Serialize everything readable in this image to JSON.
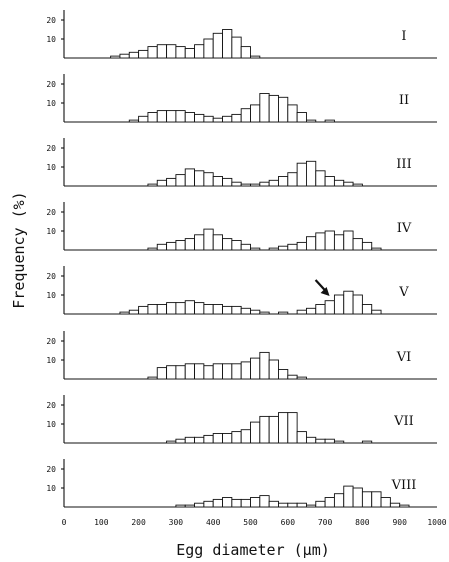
{
  "chart_data": {
    "type": "bar",
    "xlabel": "Egg diameter (μm)",
    "ylabel": "Frequency (%)",
    "xlim": [
      0,
      1000
    ],
    "ylim": [
      0,
      25
    ],
    "bin_width": 25,
    "x_ticks": [
      0,
      100,
      200,
      300,
      400,
      500,
      600,
      700,
      800,
      900,
      1000
    ],
    "x_tick_labels": [
      "0",
      "100",
      "200",
      "300",
      "400",
      "500",
      "600",
      "700",
      "800",
      "900",
      "1000"
    ],
    "y_ticks": [
      10,
      20
    ],
    "y_tick_labels": [
      "10",
      "20"
    ],
    "annotation": {
      "type": "arrow",
      "panel": "V",
      "points_to_x": 712
    },
    "panels": [
      {
        "label": "I",
        "bins": [
          [
            125,
            1
          ],
          [
            150,
            2
          ],
          [
            175,
            3
          ],
          [
            200,
            4
          ],
          [
            225,
            6
          ],
          [
            250,
            7
          ],
          [
            275,
            7
          ],
          [
            300,
            6
          ],
          [
            325,
            5
          ],
          [
            350,
            7
          ],
          [
            375,
            10
          ],
          [
            400,
            13
          ],
          [
            425,
            15
          ],
          [
            450,
            11
          ],
          [
            475,
            6
          ],
          [
            500,
            1
          ]
        ]
      },
      {
        "label": "II",
        "bins": [
          [
            175,
            1
          ],
          [
            200,
            3
          ],
          [
            225,
            5
          ],
          [
            250,
            6
          ],
          [
            275,
            6
          ],
          [
            300,
            6
          ],
          [
            325,
            5
          ],
          [
            350,
            4
          ],
          [
            375,
            3
          ],
          [
            400,
            2
          ],
          [
            425,
            3
          ],
          [
            450,
            4
          ],
          [
            475,
            7
          ],
          [
            500,
            9
          ],
          [
            525,
            15
          ],
          [
            550,
            14
          ],
          [
            575,
            13
          ],
          [
            600,
            9
          ],
          [
            625,
            5
          ],
          [
            650,
            1
          ],
          [
            700,
            1
          ]
        ]
      },
      {
        "label": "III",
        "bins": [
          [
            225,
            1
          ],
          [
            250,
            3
          ],
          [
            275,
            4
          ],
          [
            300,
            6
          ],
          [
            325,
            9
          ],
          [
            350,
            8
          ],
          [
            375,
            7
          ],
          [
            400,
            5
          ],
          [
            425,
            4
          ],
          [
            450,
            2
          ],
          [
            475,
            1
          ],
          [
            500,
            1
          ],
          [
            525,
            2
          ],
          [
            550,
            3
          ],
          [
            575,
            5
          ],
          [
            600,
            7
          ],
          [
            625,
            12
          ],
          [
            650,
            13
          ],
          [
            675,
            8
          ],
          [
            700,
            5
          ],
          [
            725,
            3
          ],
          [
            750,
            2
          ],
          [
            775,
            1
          ]
        ]
      },
      {
        "label": "IV",
        "bins": [
          [
            225,
            1
          ],
          [
            250,
            3
          ],
          [
            275,
            4
          ],
          [
            300,
            5
          ],
          [
            325,
            6
          ],
          [
            350,
            8
          ],
          [
            375,
            11
          ],
          [
            400,
            8
          ],
          [
            425,
            6
          ],
          [
            450,
            5
          ],
          [
            475,
            3
          ],
          [
            500,
            1
          ],
          [
            550,
            1
          ],
          [
            575,
            2
          ],
          [
            600,
            3
          ],
          [
            625,
            4
          ],
          [
            650,
            7
          ],
          [
            675,
            9
          ],
          [
            700,
            10
          ],
          [
            725,
            8
          ],
          [
            750,
            10
          ],
          [
            775,
            6
          ],
          [
            800,
            4
          ],
          [
            825,
            1
          ]
        ]
      },
      {
        "label": "V",
        "bins": [
          [
            150,
            1
          ],
          [
            175,
            2
          ],
          [
            200,
            4
          ],
          [
            225,
            5
          ],
          [
            250,
            5
          ],
          [
            275,
            6
          ],
          [
            300,
            6
          ],
          [
            325,
            7
          ],
          [
            350,
            6
          ],
          [
            375,
            5
          ],
          [
            400,
            5
          ],
          [
            425,
            4
          ],
          [
            450,
            4
          ],
          [
            475,
            3
          ],
          [
            500,
            2
          ],
          [
            525,
            1
          ],
          [
            575,
            1
          ],
          [
            625,
            2
          ],
          [
            650,
            3
          ],
          [
            675,
            5
          ],
          [
            700,
            7
          ],
          [
            725,
            10
          ],
          [
            750,
            12
          ],
          [
            775,
            10
          ],
          [
            800,
            5
          ],
          [
            825,
            2
          ]
        ]
      },
      {
        "label": "VI",
        "bins": [
          [
            225,
            1
          ],
          [
            250,
            6
          ],
          [
            275,
            7
          ],
          [
            300,
            7
          ],
          [
            325,
            8
          ],
          [
            350,
            8
          ],
          [
            375,
            7
          ],
          [
            400,
            8
          ],
          [
            425,
            8
          ],
          [
            450,
            8
          ],
          [
            475,
            9
          ],
          [
            500,
            11
          ],
          [
            525,
            14
          ],
          [
            550,
            10
          ],
          [
            575,
            5
          ],
          [
            600,
            2
          ],
          [
            625,
            1
          ]
        ]
      },
      {
        "label": "VII",
        "bins": [
          [
            275,
            1
          ],
          [
            300,
            2
          ],
          [
            325,
            3
          ],
          [
            350,
            3
          ],
          [
            375,
            4
          ],
          [
            400,
            5
          ],
          [
            425,
            5
          ],
          [
            450,
            6
          ],
          [
            475,
            7
          ],
          [
            500,
            11
          ],
          [
            525,
            14
          ],
          [
            550,
            14
          ],
          [
            575,
            16
          ],
          [
            600,
            16
          ],
          [
            625,
            6
          ],
          [
            650,
            3
          ],
          [
            675,
            2
          ],
          [
            700,
            2
          ],
          [
            725,
            1
          ],
          [
            800,
            1
          ]
        ]
      },
      {
        "label": "VIII",
        "bins": [
          [
            300,
            1
          ],
          [
            325,
            1
          ],
          [
            350,
            2
          ],
          [
            375,
            3
          ],
          [
            400,
            4
          ],
          [
            425,
            5
          ],
          [
            450,
            4
          ],
          [
            475,
            4
          ],
          [
            500,
            5
          ],
          [
            525,
            6
          ],
          [
            550,
            3
          ],
          [
            575,
            2
          ],
          [
            600,
            2
          ],
          [
            625,
            2
          ],
          [
            650,
            1
          ],
          [
            675,
            3
          ],
          [
            700,
            5
          ],
          [
            725,
            7
          ],
          [
            750,
            11
          ],
          [
            775,
            10
          ],
          [
            800,
            8
          ],
          [
            825,
            8
          ],
          [
            850,
            5
          ],
          [
            875,
            2
          ],
          [
            900,
            1
          ]
        ]
      }
    ]
  }
}
